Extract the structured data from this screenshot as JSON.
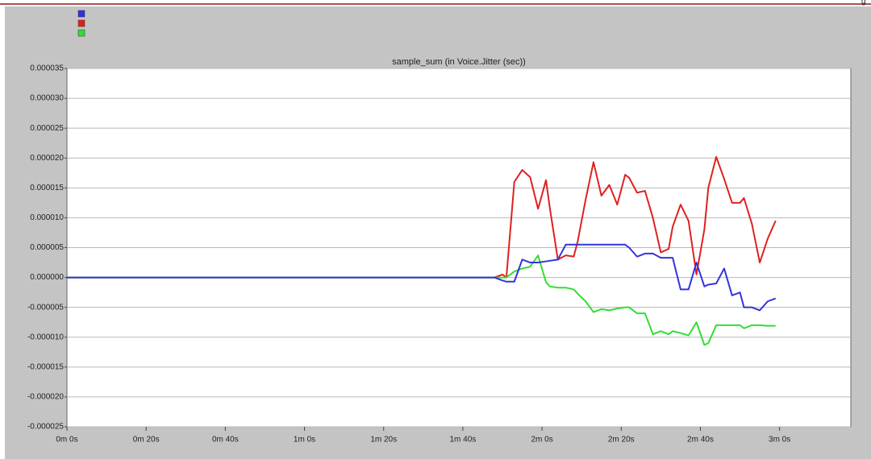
{
  "header_fragment": "g",
  "chart_data": {
    "type": "line",
    "title": "sample_sum (in Voice.Jitter (sec))",
    "x": [
      0,
      108,
      110,
      111,
      113,
      115,
      117,
      119,
      121,
      122,
      124,
      126,
      128,
      129,
      131,
      133,
      135,
      137,
      139,
      141,
      142,
      144,
      146,
      148,
      150,
      152,
      153,
      155,
      157,
      159,
      161,
      162,
      164,
      166,
      168,
      170,
      171,
      173,
      175,
      177,
      179
    ],
    "series": [
      {
        "color": "#3333dd",
        "values": [
          0,
          0,
          -5e-07,
          -7e-07,
          -7e-07,
          3e-06,
          2.5e-06,
          2.5e-06,
          2.7e-06,
          2.8e-06,
          3e-06,
          5.5e-06,
          5.5e-06,
          5.5e-06,
          5.5e-06,
          5.5e-06,
          5.5e-06,
          5.5e-06,
          5.5e-06,
          5.5e-06,
          5e-06,
          3.5e-06,
          4e-06,
          4e-06,
          3.3e-06,
          3.3e-06,
          3.3e-06,
          -2e-06,
          -2e-06,
          2.5e-06,
          -1.5e-06,
          -1.2e-06,
          -1e-06,
          1.5e-06,
          -3e-06,
          -2.5e-06,
          -5e-06,
          -5e-06,
          -5.5e-06,
          -4e-06,
          -3.5e-06
        ]
      },
      {
        "color": "#e02020",
        "values": [
          0,
          0,
          5e-07,
          0,
          1.6e-05,
          1.8e-05,
          1.68e-05,
          1.15e-05,
          1.63e-05,
          1.15e-05,
          3e-06,
          3.7e-06,
          3.5e-06,
          6e-06,
          1.3e-05,
          1.93e-05,
          1.37e-05,
          1.55e-05,
          1.22e-05,
          1.72e-05,
          1.67e-05,
          1.42e-05,
          1.45e-05,
          1e-05,
          4.2e-06,
          4.8e-06,
          8.5e-06,
          1.22e-05,
          9.5e-06,
          5e-07,
          8e-06,
          1.5e-05,
          2.02e-05,
          1.65e-05,
          1.25e-05,
          1.25e-05,
          1.33e-05,
          9e-06,
          2.5e-06,
          6.5e-06,
          9.5e-06
        ]
      },
      {
        "color": "#33dd33",
        "values": [
          0,
          0,
          0,
          0,
          1e-06,
          1.5e-06,
          1.8e-06,
          3.7e-06,
          -8e-07,
          -1.5e-06,
          -1.7e-06,
          -1.7e-06,
          -2e-06,
          -2.7e-06,
          -4e-06,
          -5.8e-06,
          -5.3e-06,
          -5.5e-06,
          -5.2e-06,
          -5e-06,
          -5e-06,
          -6e-06,
          -6e-06,
          -9.5e-06,
          -9e-06,
          -9.5e-06,
          -9e-06,
          -9.3e-06,
          -9.7e-06,
          -7.5e-06,
          -1.13e-05,
          -1.1e-05,
          -8e-06,
          -8e-06,
          -8e-06,
          -8e-06,
          -8.5e-06,
          -8e-06,
          -8e-06,
          -8.1e-06,
          -8.1e-06
        ]
      }
    ],
    "xlim": [
      0,
      198
    ],
    "xticks": [
      {
        "value": 0,
        "label": "0m 0s"
      },
      {
        "value": 20,
        "label": "0m 20s"
      },
      {
        "value": 40,
        "label": "0m 40s"
      },
      {
        "value": 60,
        "label": "1m 0s"
      },
      {
        "value": 80,
        "label": "1m 20s"
      },
      {
        "value": 100,
        "label": "1m 40s"
      },
      {
        "value": 120,
        "label": "2m 0s"
      },
      {
        "value": 140,
        "label": "2m 20s"
      },
      {
        "value": 160,
        "label": "2m 40s"
      },
      {
        "value": 180,
        "label": "3m 0s"
      }
    ],
    "ylim": [
      -2.5e-05,
      3.5e-05
    ],
    "yticks": [
      {
        "value": 3.5e-05,
        "label": "0.000035"
      },
      {
        "value": 3e-05,
        "label": "0.000030"
      },
      {
        "value": 2.5e-05,
        "label": "0.000025"
      },
      {
        "value": 2e-05,
        "label": "0.000020"
      },
      {
        "value": 1.5e-05,
        "label": "0.000015"
      },
      {
        "value": 1e-05,
        "label": "0.000010"
      },
      {
        "value": 5e-06,
        "label": "0.000005"
      },
      {
        "value": 0,
        "label": "0.000000"
      },
      {
        "value": -5e-06,
        "label": "-0.000005"
      },
      {
        "value": -1e-05,
        "label": "-0.000010"
      },
      {
        "value": -1.5e-05,
        "label": "-0.000015"
      },
      {
        "value": -2e-05,
        "label": "-0.000020"
      },
      {
        "value": -2.5e-05,
        "label": "-0.000025"
      }
    ],
    "grid": true
  }
}
